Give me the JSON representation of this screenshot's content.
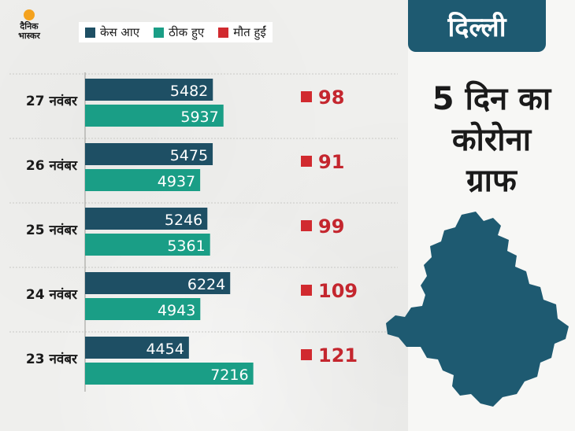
{
  "brand": {
    "logo_text": "दैनिक भास्कर"
  },
  "legend": [
    {
      "label": "केस आए",
      "color": "#1e4f64"
    },
    {
      "label": "ठीक हुए",
      "color": "#1a9e86"
    },
    {
      "label": "मौत हुईं",
      "color": "#d12a2f"
    }
  ],
  "panel": {
    "city": "दिल्ली",
    "title_lines": [
      "5 दिन का",
      "कोरोना",
      "ग्राफ"
    ]
  },
  "colors": {
    "cases": "#1e4f64",
    "recovered": "#1a9e86",
    "deaths": "#d12a2f",
    "death_text": "#c4262e",
    "banner": "#1e5a71",
    "map": "#1e5a71"
  },
  "chart_data": {
    "type": "bar",
    "orientation": "horizontal",
    "categories": [
      "27 नवंबर",
      "26 नवंबर",
      "25 नवंबर",
      "24 नवंबर",
      "23 नवंबर"
    ],
    "series": [
      {
        "name": "केस आए",
        "values": [
          5482,
          5475,
          5246,
          6224,
          4454
        ]
      },
      {
        "name": "ठीक हुए",
        "values": [
          5937,
          4937,
          5361,
          4943,
          7216
        ]
      },
      {
        "name": "मौत हुईं",
        "values": [
          98,
          91,
          99,
          109,
          121
        ]
      }
    ],
    "legend_position": "top",
    "grid": true
  }
}
